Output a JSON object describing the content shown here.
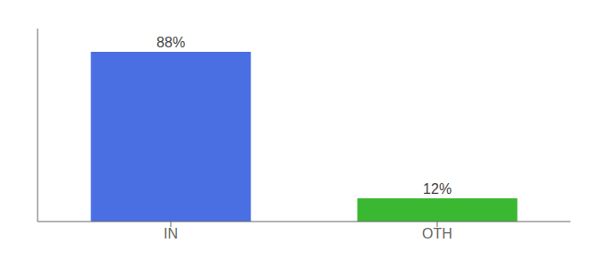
{
  "chart_data": {
    "type": "bar",
    "categories": [
      "IN",
      "OTH"
    ],
    "values": [
      88,
      12
    ],
    "value_labels": [
      "88%",
      "12%"
    ],
    "colors": [
      "#4a6fe3",
      "#3ab832"
    ],
    "data_labels": true,
    "ylim": [
      0,
      100
    ],
    "tick_labels": "x"
  }
}
